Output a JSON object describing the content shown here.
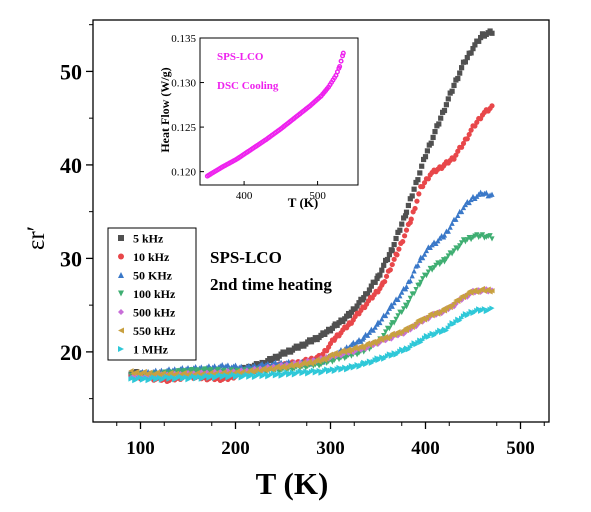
{
  "chart_data": [
    {
      "type": "scatter",
      "xlabel": "T (K)",
      "ylabel": "εr′",
      "xlim": [
        50,
        530
      ],
      "ylim": [
        12.5,
        55.5
      ],
      "xticks": [
        100,
        200,
        300,
        400,
        500
      ],
      "yticks": [
        20,
        30,
        40,
        50
      ],
      "annotation": [
        "SPS-LCO",
        "2nd time heating"
      ],
      "legend_position": "middle-left",
      "series": [
        {
          "name": "5 kHz",
          "color": "#505050",
          "marker": "square",
          "points": [
            [
              90,
              17.8
            ],
            [
              110,
              17.5
            ],
            [
              130,
              17.4
            ],
            [
              150,
              17.8
            ],
            [
              170,
              17.9
            ],
            [
              190,
              17.7
            ],
            [
              210,
              18.2
            ],
            [
              230,
              18.8
            ],
            [
              250,
              19.8
            ],
            [
              270,
              20.7
            ],
            [
              290,
              21.7
            ],
            [
              305,
              22.8
            ],
            [
              320,
              24.0
            ],
            [
              335,
              25.8
            ],
            [
              350,
              28.0
            ],
            [
              365,
              31.0
            ],
            [
              380,
              35.0
            ],
            [
              390,
              38.0
            ],
            [
              400,
              41.0
            ],
            [
              410,
              43.5
            ],
            [
              420,
              46.0
            ],
            [
              430,
              48.5
            ],
            [
              440,
              50.8
            ],
            [
              450,
              52.5
            ],
            [
              460,
              53.9
            ],
            [
              470,
              54.2
            ]
          ]
        },
        {
          "name": "10 kHz",
          "color": "#e8474a",
          "marker": "circle",
          "points": [
            [
              90,
              17.4
            ],
            [
              110,
              17.2
            ],
            [
              130,
              17.0
            ],
            [
              150,
              17.4
            ],
            [
              170,
              17.2
            ],
            [
              190,
              17.1
            ],
            [
              210,
              17.8
            ],
            [
              230,
              18.2
            ],
            [
              250,
              18.6
            ],
            [
              270,
              18.9
            ],
            [
              290,
              19.5
            ],
            [
              305,
              21.5
            ],
            [
              320,
              23.0
            ],
            [
              330,
              24.2
            ],
            [
              340,
              25.4
            ],
            [
              355,
              27.2
            ],
            [
              370,
              30.5
            ],
            [
              385,
              34.2
            ],
            [
              395,
              37.5
            ],
            [
              405,
              39.0
            ],
            [
              420,
              40.0
            ],
            [
              430,
              40.8
            ],
            [
              440,
              42.3
            ],
            [
              450,
              44.0
            ],
            [
              460,
              45.4
            ],
            [
              470,
              46.2
            ]
          ]
        },
        {
          "name": "50 KHz",
          "color": "#3a78c8",
          "marker": "triangle-up",
          "points": [
            [
              90,
              17.6
            ],
            [
              110,
              17.8
            ],
            [
              130,
              18.0
            ],
            [
              150,
              18.2
            ],
            [
              170,
              18.3
            ],
            [
              190,
              18.5
            ],
            [
              210,
              18.3
            ],
            [
              230,
              18.6
            ],
            [
              250,
              18.8
            ],
            [
              270,
              18.8
            ],
            [
              290,
              19.0
            ],
            [
              305,
              19.7
            ],
            [
              320,
              20.6
            ],
            [
              335,
              21.5
            ],
            [
              350,
              23.0
            ],
            [
              365,
              25.0
            ],
            [
              380,
              27.0
            ],
            [
              395,
              30.0
            ],
            [
              405,
              31.3
            ],
            [
              420,
              32.5
            ],
            [
              430,
              34.0
            ],
            [
              440,
              35.5
            ],
            [
              450,
              36.5
            ],
            [
              460,
              37.0
            ],
            [
              470,
              36.8
            ]
          ]
        },
        {
          "name": "100 kHz",
          "color": "#3fae72",
          "marker": "triangle-down",
          "points": [
            [
              90,
              17.4
            ],
            [
              110,
              17.5
            ],
            [
              130,
              17.7
            ],
            [
              150,
              17.9
            ],
            [
              170,
              18.0
            ],
            [
              190,
              17.9
            ],
            [
              210,
              17.9
            ],
            [
              230,
              18.0
            ],
            [
              250,
              18.1
            ],
            [
              270,
              18.4
            ],
            [
              290,
              18.7
            ],
            [
              305,
              19.2
            ],
            [
              320,
              19.6
            ],
            [
              335,
              20.1
            ],
            [
              350,
              21.0
            ],
            [
              365,
              23.0
            ],
            [
              380,
              25.0
            ],
            [
              395,
              27.5
            ],
            [
              405,
              28.8
            ],
            [
              420,
              29.8
            ],
            [
              430,
              30.8
            ],
            [
              440,
              31.8
            ],
            [
              450,
              32.3
            ],
            [
              460,
              32.4
            ],
            [
              470,
              32.2
            ]
          ]
        },
        {
          "name": "500 kHz",
          "color": "#c86ed8",
          "marker": "diamond",
          "points": [
            [
              90,
              17.3
            ],
            [
              110,
              17.4
            ],
            [
              130,
              17.5
            ],
            [
              150,
              17.6
            ],
            [
              170,
              17.7
            ],
            [
              190,
              17.8
            ],
            [
              210,
              17.9
            ],
            [
              230,
              18.2
            ],
            [
              250,
              18.5
            ],
            [
              270,
              18.8
            ],
            [
              290,
              19.2
            ],
            [
              305,
              19.6
            ],
            [
              320,
              20.0
            ],
            [
              335,
              20.4
            ],
            [
              350,
              21.0
            ],
            [
              365,
              21.6
            ],
            [
              380,
              22.2
            ],
            [
              395,
              23.2
            ],
            [
              405,
              23.8
            ],
            [
              420,
              24.4
            ],
            [
              430,
              25.0
            ],
            [
              440,
              25.8
            ],
            [
              450,
              26.4
            ],
            [
              460,
              26.6
            ],
            [
              470,
              26.5
            ]
          ]
        },
        {
          "name": "550 kHz",
          "color": "#c8a040",
          "marker": "triangle-left",
          "points": [
            [
              90,
              17.8
            ],
            [
              110,
              17.7
            ],
            [
              130,
              17.6
            ],
            [
              150,
              17.6
            ],
            [
              170,
              17.6
            ],
            [
              190,
              17.7
            ],
            [
              210,
              17.8
            ],
            [
              230,
              18.1
            ],
            [
              250,
              18.4
            ],
            [
              270,
              18.7
            ],
            [
              290,
              19.1
            ],
            [
              305,
              19.8
            ],
            [
              320,
              20.2
            ],
            [
              335,
              20.6
            ],
            [
              350,
              21.2
            ],
            [
              365,
              21.8
            ],
            [
              380,
              22.4
            ],
            [
              395,
              23.4
            ],
            [
              405,
              23.9
            ],
            [
              420,
              24.5
            ],
            [
              430,
              25.2
            ],
            [
              440,
              26.0
            ],
            [
              450,
              26.5
            ],
            [
              460,
              26.6
            ],
            [
              470,
              26.6
            ]
          ]
        },
        {
          "name": "1 MHz",
          "color": "#2fc8d8",
          "marker": "triangle-right",
          "points": [
            [
              90,
              17.1
            ],
            [
              110,
              17.1
            ],
            [
              130,
              17.2
            ],
            [
              150,
              17.2
            ],
            [
              170,
              17.3
            ],
            [
              190,
              17.4
            ],
            [
              210,
              17.4
            ],
            [
              230,
              17.5
            ],
            [
              250,
              17.6
            ],
            [
              270,
              17.8
            ],
            [
              290,
              17.9
            ],
            [
              305,
              18.1
            ],
            [
              320,
              18.3
            ],
            [
              335,
              18.7
            ],
            [
              350,
              19.2
            ],
            [
              365,
              19.7
            ],
            [
              380,
              20.3
            ],
            [
              395,
              21.2
            ],
            [
              405,
              21.8
            ],
            [
              420,
              22.3
            ],
            [
              430,
              23.1
            ],
            [
              440,
              23.8
            ],
            [
              450,
              24.3
            ],
            [
              460,
              24.5
            ],
            [
              470,
              24.5
            ]
          ]
        }
      ]
    },
    {
      "type": "scatter",
      "xlabel": "T (K)",
      "ylabel": "Heat Flow (W/g)",
      "xlim": [
        340,
        555
      ],
      "ylim": [
        0.1185,
        0.135
      ],
      "xticks": [
        400,
        500
      ],
      "yticks": [
        0.12,
        0.125,
        0.13,
        0.135
      ],
      "legend": [
        "SPS-LCO",
        "DSC Cooling"
      ],
      "series": [
        {
          "name": "DSC Cooling",
          "color": "#ee22ee",
          "marker": "circle-open",
          "points": [
            [
              350,
              0.1195
            ],
            [
              370,
              0.1205
            ],
            [
              390,
              0.1214
            ],
            [
              410,
              0.1225
            ],
            [
              430,
              0.1236
            ],
            [
              450,
              0.1248
            ],
            [
              470,
              0.1261
            ],
            [
              490,
              0.1274
            ],
            [
              505,
              0.1285
            ],
            [
              515,
              0.1295
            ],
            [
              525,
              0.1308
            ],
            [
              530,
              0.1318
            ],
            [
              535,
              0.1333
            ]
          ]
        }
      ]
    }
  ]
}
